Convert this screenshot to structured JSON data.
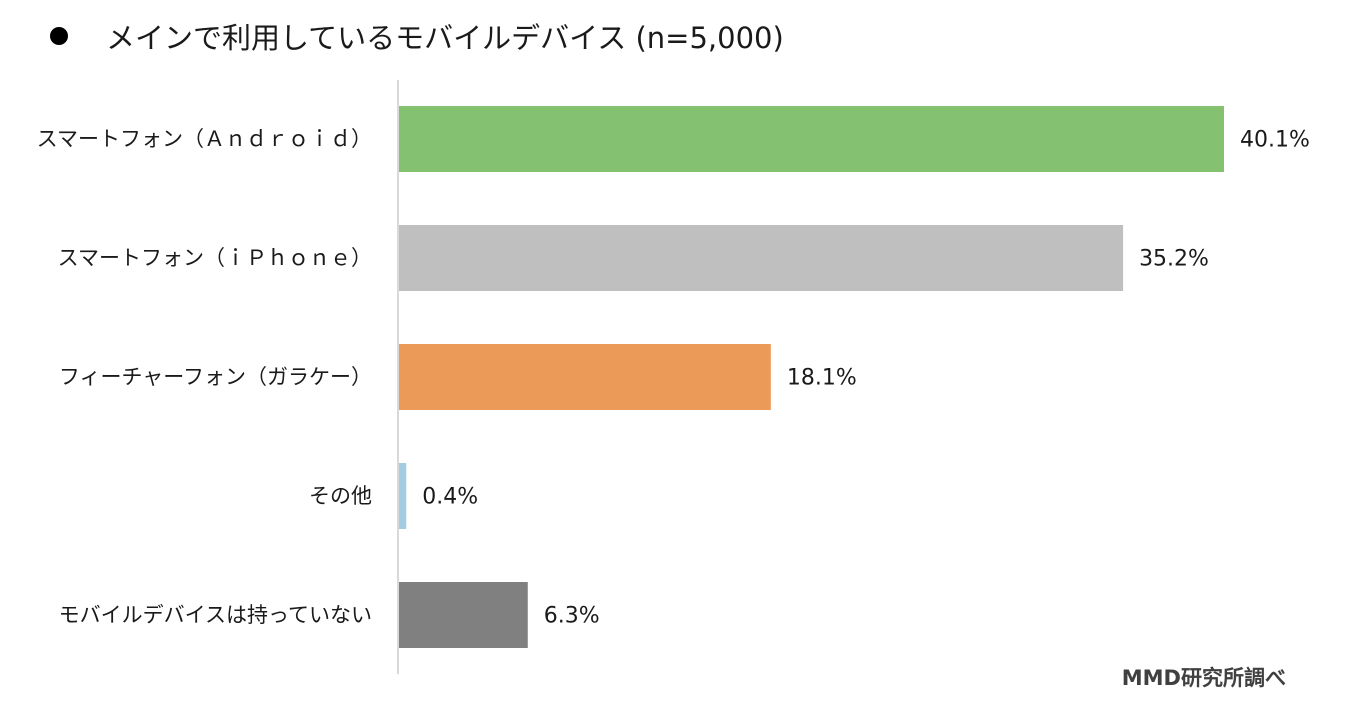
{
  "chart_data": {
    "type": "bar",
    "orientation": "horizontal",
    "title": "メインで利用しているモバイルデバイス (n=5,000)",
    "categories": [
      "スマートフォン（Ａｎｄｒｏｉｄ）",
      "スマートフォン（ｉＰｈｏｎｅ）",
      "フィーチャーフォン（ガラケー）",
      "その他",
      "モバイルデバイスは持っていない"
    ],
    "values": [
      40.1,
      35.2,
      18.1,
      0.4,
      6.3
    ],
    "value_labels": [
      "40.1%",
      "35.2%",
      "18.1%",
      "0.4%",
      "6.3%"
    ],
    "colors": [
      "#84c272",
      "#bfbfbf",
      "#eb9a57",
      "#a3cbe1",
      "#808080"
    ],
    "unit": "%",
    "xlim": [
      0,
      40.1
    ],
    "grid": false,
    "legend": "none"
  },
  "source_credit": "MMD研究所調べ"
}
